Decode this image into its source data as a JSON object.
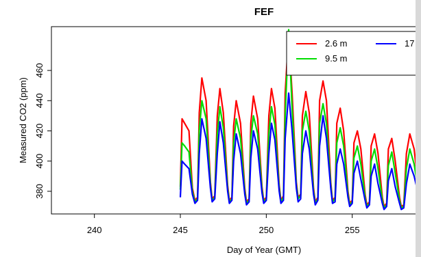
{
  "chart_data": {
    "type": "line",
    "title": "FEF",
    "xlabel": "Day of Year (GMT)",
    "ylabel": "Measured CO2 (ppm)",
    "xlim": [
      237.5,
      259.0
    ],
    "ylim": [
      365,
      489
    ],
    "x_ticks": [
      "240",
      "245",
      "250",
      "255"
    ],
    "y_ticks": [
      "380",
      "400",
      "420",
      "440",
      "460"
    ],
    "grid": false,
    "legend_placement": "top-right (partially cut off)",
    "legend": [
      {
        "label": "2.6 m",
        "color": "#ff0000"
      },
      {
        "label": "9.5 m",
        "color": "#00dd00"
      },
      {
        "label": "17",
        "color": "#0000ff"
      }
    ],
    "series": [
      {
        "name": "2.6 m",
        "color": "#ff0000",
        "x": [
          245.0,
          245.1,
          245.25,
          245.5,
          245.7,
          245.85,
          246.0,
          246.1,
          246.25,
          246.5,
          246.75,
          246.85,
          247.0,
          247.15,
          247.3,
          247.5,
          247.75,
          247.85,
          248.0,
          248.1,
          248.25,
          248.5,
          248.75,
          248.85,
          249.0,
          249.1,
          249.25,
          249.5,
          249.75,
          249.85,
          250.0,
          250.15,
          250.3,
          250.5,
          250.75,
          250.85,
          251.0,
          251.1,
          251.3,
          251.5,
          251.75,
          251.85,
          252.0,
          252.1,
          252.3,
          252.5,
          252.75,
          252.85,
          253.0,
          253.1,
          253.3,
          253.5,
          253.75,
          253.85,
          254.0,
          254.1,
          254.3,
          254.5,
          254.75,
          254.85,
          255.0,
          255.1,
          255.3,
          255.5,
          255.75,
          255.85,
          256.0,
          256.1,
          256.3,
          256.5,
          256.75,
          256.85,
          257.0,
          257.1,
          257.3,
          257.5,
          257.75,
          257.85,
          258.0,
          258.15,
          258.35,
          258.6,
          258.85,
          259.0
        ],
        "values": [
          383,
          428,
          425,
          420,
          382,
          374,
          376,
          432,
          455,
          440,
          386,
          375,
          377,
          430,
          448,
          432,
          384,
          374,
          376,
          423,
          440,
          425,
          382,
          373,
          375,
          425,
          443,
          428,
          383,
          374,
          376,
          430,
          448,
          435,
          384,
          374,
          377,
          445,
          484,
          445,
          386,
          376,
          378,
          430,
          446,
          432,
          382,
          373,
          376,
          440,
          453,
          440,
          386,
          374,
          376,
          425,
          435,
          420,
          380,
          372,
          374,
          412,
          420,
          408,
          378,
          371,
          373,
          410,
          418,
          405,
          376,
          370,
          372,
          408,
          415,
          400,
          376,
          370,
          371,
          405,
          418,
          408,
          382,
          376
        ]
      },
      {
        "name": "9.5 m",
        "color": "#00dd00",
        "x": [
          245.0,
          245.1,
          245.25,
          245.5,
          245.7,
          245.85,
          246.0,
          246.1,
          246.25,
          246.5,
          246.75,
          246.85,
          247.0,
          247.15,
          247.3,
          247.5,
          247.75,
          247.85,
          248.0,
          248.1,
          248.25,
          248.5,
          248.75,
          248.85,
          249.0,
          249.1,
          249.25,
          249.5,
          249.75,
          249.85,
          250.0,
          250.15,
          250.3,
          250.5,
          250.75,
          250.85,
          251.0,
          251.1,
          251.3,
          251.5,
          251.75,
          251.85,
          252.0,
          252.1,
          252.3,
          252.5,
          252.75,
          252.85,
          253.0,
          253.1,
          253.3,
          253.5,
          253.75,
          253.85,
          254.0,
          254.1,
          254.3,
          254.5,
          254.75,
          254.85,
          255.0,
          255.1,
          255.3,
          255.5,
          255.75,
          255.85,
          256.0,
          256.1,
          256.3,
          256.5,
          256.75,
          256.85,
          257.0,
          257.1,
          257.3,
          257.5,
          257.75,
          257.85,
          258.0,
          258.15,
          258.35,
          258.6,
          258.85,
          259.0
        ],
        "values": [
          381,
          412,
          410,
          406,
          380,
          373,
          375,
          420,
          440,
          428,
          384,
          374,
          376,
          418,
          436,
          422,
          382,
          373,
          375,
          412,
          428,
          415,
          380,
          372,
          374,
          415,
          430,
          418,
          381,
          373,
          375,
          418,
          436,
          424,
          382,
          373,
          376,
          430,
          487,
          435,
          384,
          375,
          377,
          420,
          433,
          420,
          380,
          372,
          375,
          425,
          438,
          425,
          384,
          373,
          375,
          412,
          422,
          410,
          378,
          371,
          373,
          402,
          410,
          398,
          376,
          370,
          372,
          400,
          408,
          395,
          374,
          369,
          371,
          397,
          406,
          392,
          374,
          369,
          370,
          395,
          408,
          398,
          380,
          375
        ]
      },
      {
        "name": "17",
        "color": "#0000ff",
        "x": [
          245.0,
          245.1,
          245.25,
          245.5,
          245.7,
          245.85,
          246.0,
          246.1,
          246.25,
          246.5,
          246.75,
          246.85,
          247.0,
          247.15,
          247.3,
          247.5,
          247.75,
          247.85,
          248.0,
          248.1,
          248.25,
          248.5,
          248.75,
          248.85,
          249.0,
          249.1,
          249.25,
          249.5,
          249.75,
          249.85,
          250.0,
          250.15,
          250.3,
          250.5,
          250.75,
          250.85,
          251.0,
          251.1,
          251.3,
          251.5,
          251.75,
          251.85,
          252.0,
          252.1,
          252.3,
          252.5,
          252.75,
          252.85,
          253.0,
          253.1,
          253.3,
          253.5,
          253.75,
          253.85,
          254.0,
          254.1,
          254.3,
          254.5,
          254.75,
          254.85,
          255.0,
          255.1,
          255.3,
          255.5,
          255.75,
          255.85,
          256.0,
          256.1,
          256.3,
          256.5,
          256.75,
          256.85,
          257.0,
          257.1,
          257.3,
          257.5,
          257.75,
          257.85,
          258.0,
          258.15,
          258.35,
          258.6,
          258.85,
          259.0
        ],
        "values": [
          376,
          400,
          398,
          395,
          378,
          372,
          374,
          405,
          428,
          415,
          382,
          373,
          375,
          405,
          426,
          412,
          380,
          372,
          374,
          400,
          418,
          405,
          378,
          371,
          373,
          402,
          420,
          408,
          379,
          372,
          374,
          405,
          425,
          414,
          380,
          372,
          374,
          415,
          445,
          420,
          382,
          373,
          375,
          405,
          420,
          408,
          378,
          371,
          374,
          410,
          430,
          415,
          382,
          372,
          373,
          398,
          408,
          398,
          376,
          370,
          372,
          392,
          400,
          388,
          374,
          369,
          371,
          390,
          398,
          385,
          372,
          368,
          370,
          387,
          395,
          383,
          372,
          368,
          369,
          385,
          398,
          390,
          378,
          374
        ]
      }
    ]
  }
}
